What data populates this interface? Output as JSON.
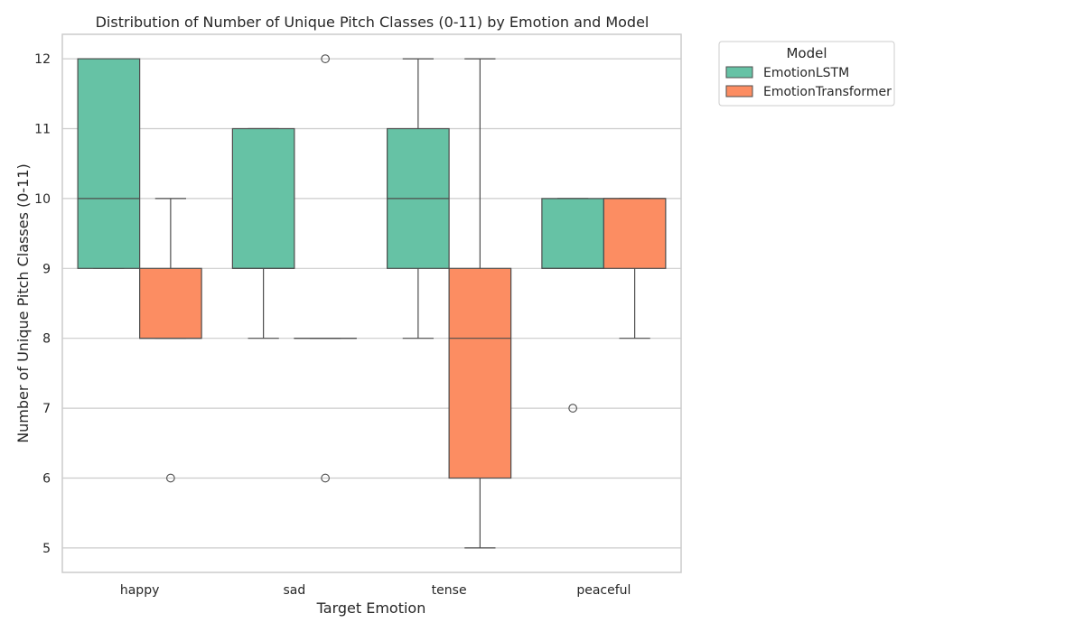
{
  "chart_data": {
    "type": "box",
    "title": "Distribution of Number of Unique Pitch Classes (0-11) by Emotion and Model",
    "xlabel": "Target Emotion",
    "ylabel": "Number of Unique Pitch Classes (0-11)",
    "categories": [
      "happy",
      "sad",
      "tense",
      "peaceful"
    ],
    "ylim": [
      4.65,
      12.35
    ],
    "yticks": [
      5,
      6,
      7,
      8,
      9,
      10,
      11,
      12
    ],
    "grid": "horizontal",
    "legend": {
      "title": "Model",
      "placement": "outside-top-right"
    },
    "series": [
      {
        "name": "EmotionLSTM",
        "color": "#66c2a5",
        "boxes": [
          {
            "category": "happy",
            "whislo": 9,
            "q1": 9,
            "med": 10,
            "q3": 12,
            "whishi": 12,
            "fliers": []
          },
          {
            "category": "sad",
            "whislo": 8,
            "q1": 9,
            "med": 9,
            "q3": 11,
            "whishi": 11,
            "fliers": []
          },
          {
            "category": "tense",
            "whislo": 8,
            "q1": 9,
            "med": 10,
            "q3": 11,
            "whishi": 12,
            "fliers": []
          },
          {
            "category": "peaceful",
            "whislo": 9,
            "q1": 9,
            "med": 9,
            "q3": 10,
            "whishi": 10,
            "fliers": [
              7
            ]
          }
        ]
      },
      {
        "name": "EmotionTransformer",
        "color": "#fc8d62",
        "boxes": [
          {
            "category": "happy",
            "whislo": 8,
            "q1": 8,
            "med": 8,
            "q3": 9,
            "whishi": 10,
            "fliers": [
              6
            ]
          },
          {
            "category": "sad",
            "whislo": 8,
            "q1": 8,
            "med": 8,
            "q3": 8,
            "whishi": 8,
            "fliers": [
              12,
              6
            ]
          },
          {
            "category": "tense",
            "whislo": 5,
            "q1": 6,
            "med": 8,
            "q3": 9,
            "whishi": 12,
            "fliers": []
          },
          {
            "category": "peaceful",
            "whislo": 8,
            "q1": 9,
            "med": 10,
            "q3": 10,
            "whishi": 10,
            "fliers": []
          }
        ]
      }
    ]
  }
}
